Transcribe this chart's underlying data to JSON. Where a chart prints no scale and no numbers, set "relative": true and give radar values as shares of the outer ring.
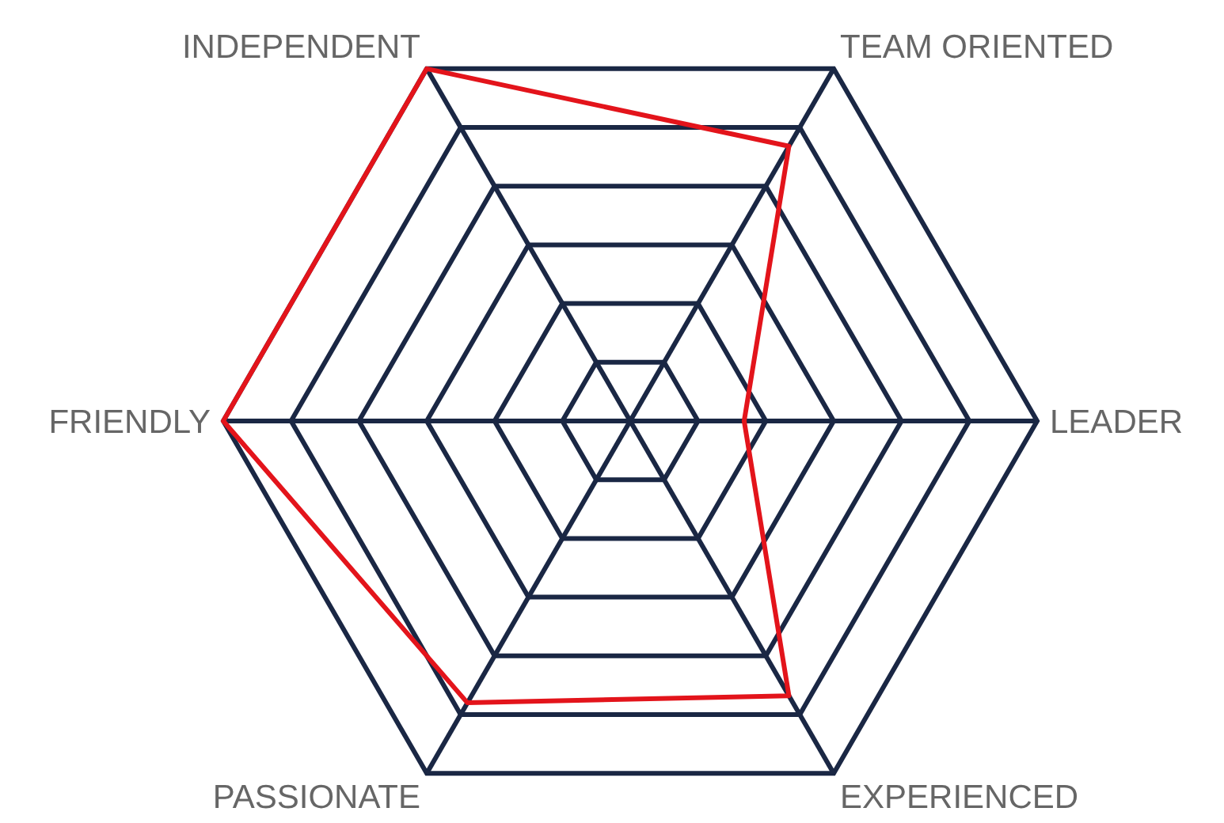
{
  "chart_data": {
    "type": "radar",
    "categories": [
      "INDEPENDENT",
      "TEAM ORIENTED",
      "LEADER",
      "EXPERIENCED",
      "PASSIONATE",
      "FRIENDLY"
    ],
    "relative": true,
    "grid": true,
    "series": [
      {
        "color": "#e3141b",
        "values": [
          1,
          0.78,
          0.28,
          0.78,
          0.8,
          1
        ]
      }
    ]
  }
}
